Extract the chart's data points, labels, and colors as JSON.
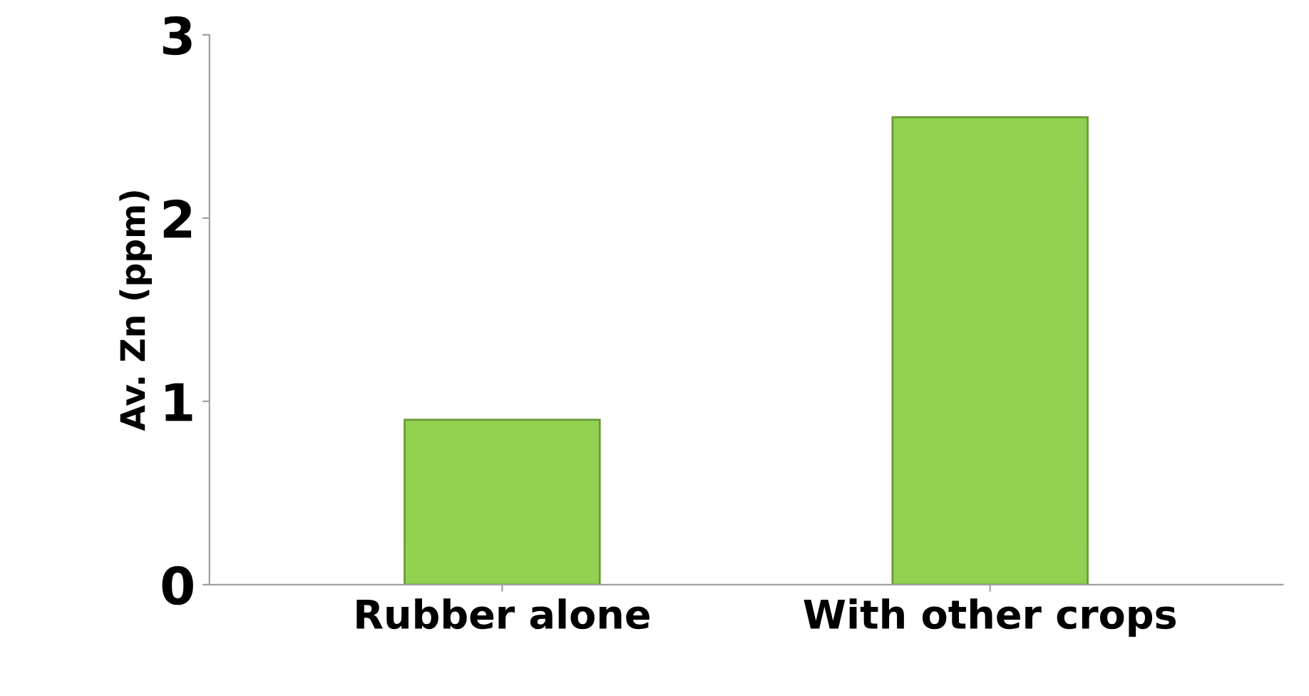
{
  "chart_data": {
    "type": "bar",
    "ylabel": "Av. Zn (ppm)",
    "categories": [
      "Rubber alone",
      "With other crops"
    ],
    "values": [
      0.9,
      2.55
    ],
    "color": "#92d050",
    "ylim": [
      0,
      3
    ],
    "yticks": [
      0,
      1,
      2,
      3
    ],
    "grid": false
  }
}
